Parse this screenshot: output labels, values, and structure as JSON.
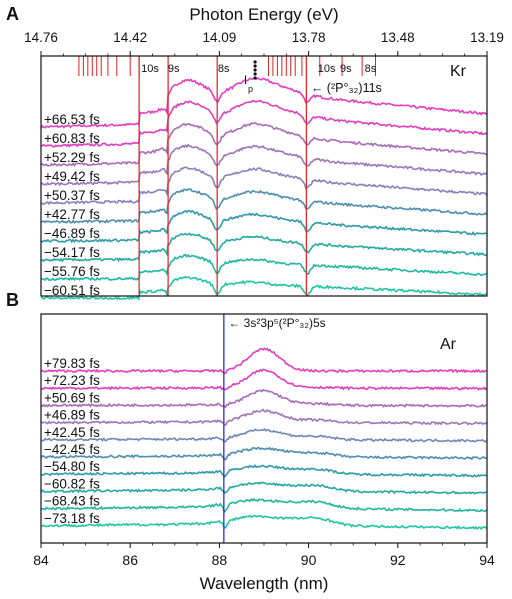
{
  "chart_data": [
    {
      "panel": "A",
      "element": "Kr",
      "type": "line",
      "xlim": [
        84,
        94
      ],
      "top_axis": {
        "title": "Photon Energy (eV)",
        "ticks": [
          "14.76",
          "14.42",
          "14.09",
          "13.78",
          "13.48",
          "13.19"
        ],
        "tick_wavelengths": [
          84,
          86,
          88,
          90,
          92,
          94
        ]
      },
      "trace_labels": [
        "+66.53 fs",
        "+60.83 fs",
        "+52.29 fs",
        "+49.42 fs",
        "+50.37 fs",
        "+42.77 fs",
        "−46.89 fs",
        "−54.17 fs",
        "−55.76 fs",
        "−60.51 fs"
      ],
      "trace_colors": [
        "#e33fbf",
        "#de3fbe",
        "#a86cb6",
        "#9c77b8",
        "#8a7fbb",
        "#4e8eae",
        "#2f9aa9",
        "#25a9a3",
        "#20b6a2",
        "#20c4a6"
      ],
      "vertical_lines": {
        "color": "#e02020",
        "wavelengths": [
          86.2,
          86.85,
          87.95,
          89.95
        ]
      },
      "series_labels_left": [
        "10s",
        "9s",
        "8s"
      ],
      "series_labels_right": [
        "10s",
        "9s",
        "8s"
      ],
      "annotation": "← (²P°₃₂)11s",
      "ip_marker": "I",
      "ip_sub": "p",
      "tick_marks_left": [
        84.85,
        84.95,
        85.05,
        85.15,
        85.25,
        85.35,
        85.5,
        85.7,
        86.0,
        86.2
      ],
      "tick_marks_right": [
        89.1,
        89.2,
        89.3,
        89.4,
        89.5,
        89.6,
        89.7,
        89.85,
        90.25,
        90.75,
        91.2,
        91.5
      ]
    },
    {
      "panel": "B",
      "element": "Ar",
      "type": "line",
      "xlim": [
        84,
        94
      ],
      "xlabel": "Wavelength (nm)",
      "x_ticks": [
        "84",
        "86",
        "88",
        "90",
        "92",
        "94"
      ],
      "trace_labels": [
        "+79.83 fs",
        "+72.23 fs",
        "+50.69 fs",
        "+46.89 fs",
        "+42.45 fs",
        "−42.45 fs",
        "−54.80 fs",
        "−60.82 fs",
        "−68.43 fs",
        "−73.18 fs"
      ],
      "trace_colors": [
        "#e33fbf",
        "#de3fbe",
        "#a86cb6",
        "#9c77b8",
        "#6f88b6",
        "#4e8eae",
        "#2f9aa9",
        "#25a9a3",
        "#20b6a2",
        "#20c4a6"
      ],
      "vertical_line": {
        "color": "#1a1ad8",
        "wavelength": 88.1
      },
      "annotation": "← 3s²3p⁵(²P°₃₂)5s"
    }
  ],
  "labels": {
    "panel_a": "A",
    "panel_b": "B",
    "kr": "Kr",
    "ar": "Ar",
    "top_axis_title": "Photon Energy (eV)",
    "bottom_axis_title": "Wavelength (nm)",
    "series_10s": "10s",
    "series_9s": "9s",
    "series_8s": "8s",
    "ip": "I",
    "ip_sub": "p"
  }
}
